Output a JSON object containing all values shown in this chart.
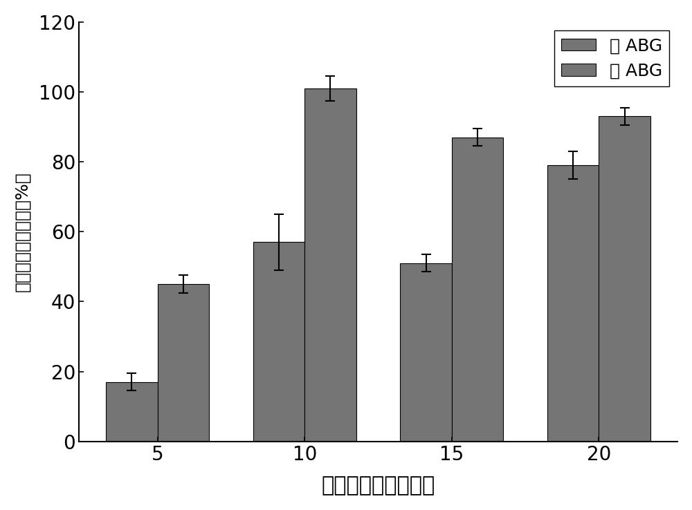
{
  "time_points": [
    5,
    10,
    15,
    20
  ],
  "no_abg_values": [
    17,
    57,
    51,
    79
  ],
  "abg_values": [
    45,
    101,
    87,
    93
  ],
  "no_abg_errors": [
    2.5,
    8,
    2.5,
    4
  ],
  "abg_errors": [
    2.5,
    3.5,
    2.5,
    2.5
  ],
  "bar_color": "#757575",
  "bar_width": 0.35,
  "ylim": [
    0,
    120
  ],
  "yticks": [
    0,
    20,
    40,
    60,
    80,
    100,
    120
  ],
  "xlabel": "预处理时间（分钟）",
  "ylabel": "半乳糖的相对产率（%）",
  "legend_no_abg": "无 ABG",
  "legend_abg": "有 ABG",
  "xlabel_fontsize": 22,
  "ylabel_fontsize": 18,
  "tick_fontsize": 20,
  "legend_fontsize": 18,
  "background_color": "#ffffff",
  "error_capsize": 5
}
